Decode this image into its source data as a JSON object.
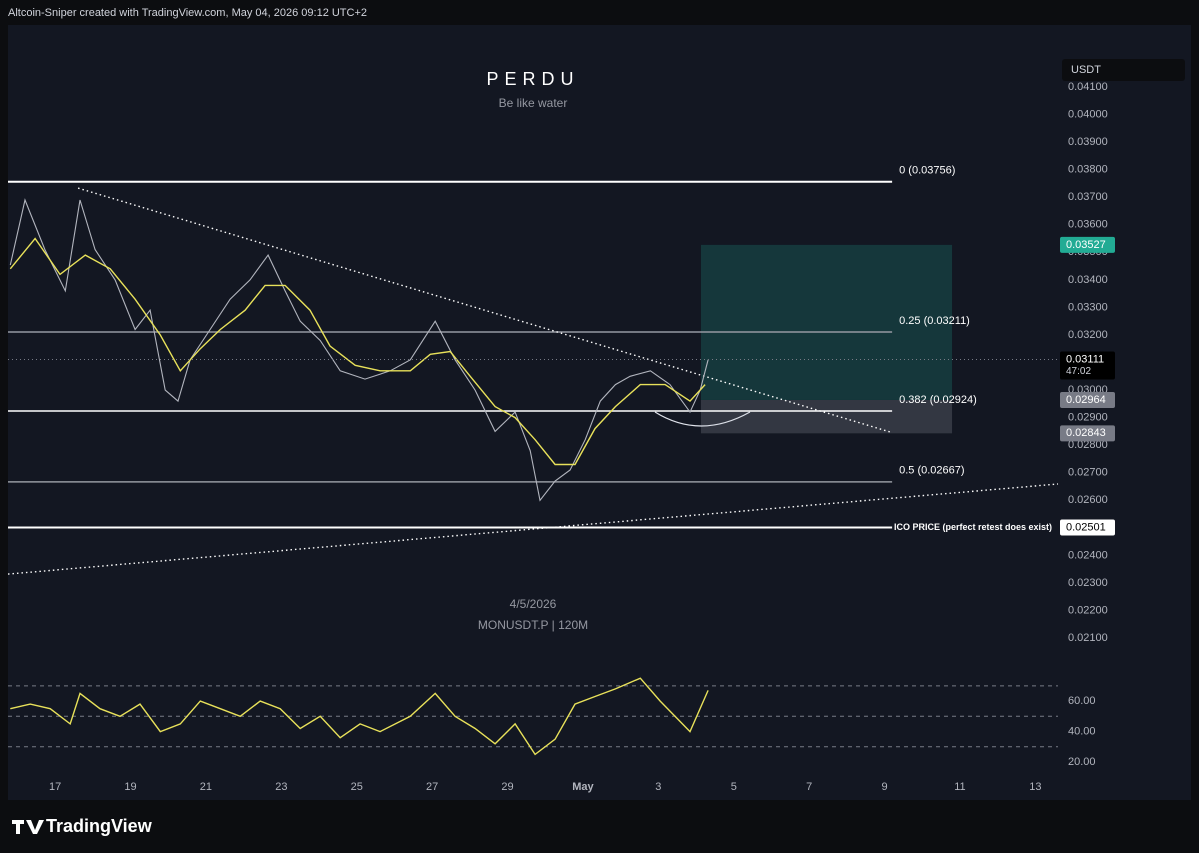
{
  "header": "Altcoin-Sniper created with TradingView.com, May 04, 2026 09:12 UTC+2",
  "brand": "TradingView",
  "chart_data": [
    {
      "type": "line",
      "title": "PERDU",
      "subtitle": "Be like water",
      "watermark_date": "4/5/2026",
      "symbol": "MONUSDT.P | 120M",
      "currency": "USDT",
      "xlim": [
        15.75,
        43.6
      ],
      "ylim": [
        0.01984,
        0.04198
      ],
      "xticks": [
        17,
        19,
        21,
        23,
        25,
        27,
        29,
        {
          "value": 31,
          "label": "May"
        },
        {
          "value": 33,
          "label": "3"
        },
        {
          "value": 35,
          "label": "5"
        },
        {
          "value": 37,
          "label": "7"
        },
        {
          "value": 39,
          "label": "9"
        },
        {
          "value": 41,
          "label": "11"
        },
        {
          "value": 43,
          "label": "13"
        }
      ],
      "yticks": [
        {
          "value": 0.021,
          "label": "0.02100"
        },
        {
          "value": 0.022,
          "label": "0.02200"
        },
        {
          "value": 0.023,
          "label": "0.02300"
        },
        {
          "value": 0.024,
          "label": "0.02400"
        },
        {
          "value": 0.025,
          "label": "0.02500"
        },
        {
          "value": 0.026,
          "label": "0.02600"
        },
        {
          "value": 0.027,
          "label": "0.02700"
        },
        {
          "value": 0.028,
          "label": "0.02800"
        },
        {
          "value": 0.029,
          "label": "0.02900"
        },
        {
          "value": 0.03,
          "label": "0.03000"
        },
        {
          "value": 0.031,
          "label": "0.03100"
        },
        {
          "value": 0.032,
          "label": "0.03200"
        },
        {
          "value": 0.033,
          "label": "0.03300"
        },
        {
          "value": 0.034,
          "label": "0.03400"
        },
        {
          "value": 0.035,
          "label": "0.03500"
        },
        {
          "value": 0.036,
          "label": "0.03600"
        },
        {
          "value": 0.037,
          "label": "0.03700"
        },
        {
          "value": 0.038,
          "label": "0.03800"
        },
        {
          "value": 0.039,
          "label": "0.03900"
        },
        {
          "value": 0.04,
          "label": "0.04000"
        },
        {
          "value": 0.041,
          "label": "0.04100"
        }
      ],
      "grid": false,
      "series": [
        {
          "color": "#b2b5be",
          "x": [
            15.81,
            16.2,
            16.73,
            17.27,
            17.66,
            18.06,
            18.59,
            19.12,
            19.52,
            19.92,
            20.26,
            20.58,
            21.11,
            21.64,
            22.17,
            22.65,
            23.1,
            23.5,
            24.03,
            24.56,
            25.22,
            25.89,
            26.42,
            27.08,
            27.61,
            28.14,
            28.67,
            29.2,
            29.6,
            29.86,
            30.26,
            30.66,
            31.06,
            31.46,
            31.86,
            32.25,
            32.79,
            33.31,
            33.84,
            34.11,
            34.32
          ],
          "values": [
            0.03454,
            0.0369,
            0.0351,
            0.0336,
            0.0369,
            0.0351,
            0.034,
            0.0322,
            0.0329,
            0.03,
            0.0296,
            0.0311,
            0.0322,
            0.0333,
            0.034,
            0.0349,
            0.0336,
            0.0325,
            0.0318,
            0.0307,
            0.0304,
            0.0307,
            0.0311,
            0.0325,
            0.0311,
            0.03,
            0.0285,
            0.0292,
            0.0278,
            0.026,
            0.0267,
            0.0271,
            0.0282,
            0.0296,
            0.0302,
            0.0305,
            0.0307,
            0.0302,
            0.0292,
            0.03,
            0.0311
          ]
        },
        {
          "color": "#e8e15a",
          "x": [
            15.81,
            16.47,
            17.13,
            17.8,
            18.46,
            19.12,
            19.79,
            20.32,
            20.85,
            21.38,
            22.04,
            22.57,
            23.1,
            23.76,
            24.29,
            24.96,
            25.62,
            26.42,
            26.95,
            27.48,
            28.01,
            28.67,
            29.2,
            29.73,
            30.26,
            30.79,
            31.32,
            31.86,
            32.52,
            33.18,
            33.84,
            34.24
          ],
          "values": [
            0.0344,
            0.0355,
            0.0342,
            0.0349,
            0.0344,
            0.0333,
            0.032,
            0.0307,
            0.0315,
            0.0322,
            0.0329,
            0.0338,
            0.0338,
            0.0329,
            0.0316,
            0.0309,
            0.0307,
            0.0307,
            0.0313,
            0.0314,
            0.0305,
            0.0294,
            0.029,
            0.0282,
            0.0273,
            0.0273,
            0.0286,
            0.0294,
            0.0302,
            0.0302,
            0.0296,
            0.0302
          ]
        }
      ],
      "fib_levels": [
        {
          "label": "0 (0.03756)",
          "price": 0.03756,
          "color": "#ffffff"
        },
        {
          "label": "0.25 (0.03211)",
          "price": 0.03211,
          "color": "#9598a1"
        },
        {
          "label": "0.382 (0.02924)",
          "price": 0.02924,
          "color": "#ffffff"
        },
        {
          "label": "0.5 (0.02667)",
          "price": 0.02667,
          "color": "#9598a1"
        },
        {
          "label": "ICO PRICE (perfect retest does exist)",
          "price": 0.02501,
          "color": "#ffffff"
        }
      ],
      "fib_end": 39.2,
      "trendlines": [
        {
          "x": [
            17.61,
            39.15
          ],
          "values": [
            0.03733,
            0.02848
          ]
        },
        {
          "x": [
            15.75,
            43.6
          ],
          "values": [
            0.02332,
            0.02659
          ]
        }
      ],
      "position": {
        "x": [
          34.13,
          40.79
        ],
        "target": 0.03527,
        "entry": 0.02964,
        "stop": 0.02843
      },
      "price_tags": [
        {
          "value": 0.03527,
          "label": "0.03527",
          "color": "#22ab94"
        },
        {
          "value": 0.03111,
          "label": "0.03111",
          "color": "#000000",
          "countdown": "47:02"
        },
        {
          "value": 0.02964,
          "label": "0.02964",
          "color": "#787b86"
        },
        {
          "value": 0.02843,
          "label": "0.02843",
          "color": "#787b86"
        },
        {
          "value": 0.02501,
          "label": "0.02501",
          "color": "#ffffff"
        }
      ]
    },
    {
      "type": "line",
      "xlim": [
        15.75,
        43.6
      ],
      "ylim": [
        11.5,
        77.1
      ],
      "yticks": [
        {
          "value": 20,
          "label": "20.00"
        },
        {
          "value": 40,
          "label": "40.00"
        },
        {
          "value": 60,
          "label": "60.00"
        }
      ],
      "bands": [
        70,
        50,
        30
      ],
      "series": [
        {
          "color": "#e8e15a",
          "x": [
            15.81,
            16.34,
            16.87,
            17.4,
            17.66,
            18.19,
            18.72,
            19.25,
            19.79,
            20.32,
            20.85,
            21.38,
            21.91,
            22.44,
            22.97,
            23.5,
            24.03,
            24.56,
            25.09,
            25.62,
            26.42,
            27.08,
            27.61,
            28.14,
            28.67,
            29.2,
            29.73,
            30.26,
            30.79,
            31.32,
            31.86,
            32.52,
            33.05,
            33.84,
            34.32
          ],
          "values": [
            55,
            58,
            55,
            45,
            65,
            55,
            50,
            58,
            40,
            45,
            60,
            55,
            50,
            60,
            55,
            42,
            50,
            36,
            45,
            40,
            50,
            65,
            50,
            42,
            32,
            45,
            25,
            35,
            58,
            63,
            68,
            75,
            60,
            40,
            67
          ]
        }
      ]
    }
  ]
}
